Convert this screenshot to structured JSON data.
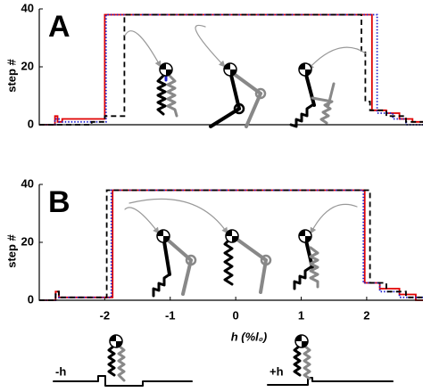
{
  "chart_data": [
    {
      "type": "line",
      "panel_label": "A",
      "ylabel": "step #",
      "xlim": [
        -3,
        2.86
      ],
      "ylim": [
        0,
        40
      ],
      "yticks": [
        0,
        20,
        40
      ],
      "series": [
        {
          "color": "#e00000",
          "dash": "solid",
          "x": [
            -3,
            -2.76,
            -2.76,
            -2.72,
            -2.72,
            -2.65,
            -2.65,
            -2.0,
            -2.0,
            2.08,
            2.08,
            2.3,
            2.3,
            2.5,
            2.5,
            2.7,
            2.7,
            2.86
          ],
          "values": [
            0,
            0,
            3,
            3,
            1,
            1,
            2,
            2,
            38,
            38,
            5,
            5,
            4,
            4,
            2,
            2,
            1,
            1
          ]
        },
        {
          "color": "#2020cc",
          "dash": "dotted",
          "x": [
            -3,
            -2.76,
            -2.76,
            -2.7,
            -2.7,
            -1.98,
            -1.98,
            2.16,
            2.16,
            2.4,
            2.4,
            2.6,
            2.6,
            2.86
          ],
          "values": [
            0,
            0,
            2,
            2,
            1,
            1,
            38,
            38,
            4,
            4,
            2,
            2,
            0,
            0
          ]
        },
        {
          "color": "#000000",
          "dash": "dashed",
          "x": [
            -3,
            -2.2,
            -2.2,
            -2.0,
            -2.0,
            -1.7,
            -1.7,
            1.92,
            1.92,
            1.98,
            1.98,
            2.05,
            2.05,
            2.3,
            2.3,
            2.6,
            2.6,
            2.86
          ],
          "values": [
            0,
            0,
            1,
            1,
            3,
            3,
            38,
            38,
            25,
            25,
            8,
            8,
            5,
            5,
            3,
            3,
            1,
            1
          ]
        }
      ]
    },
    {
      "type": "line",
      "panel_label": "B",
      "ylabel": "step #",
      "xlabel": "h (%l₀)",
      "xlim": [
        -3,
        2.86
      ],
      "ylim": [
        0,
        40
      ],
      "yticks": [
        0,
        20,
        40
      ],
      "xticks": [
        -2,
        -1,
        0,
        1,
        2
      ],
      "annotations": [
        "-h",
        "+h"
      ],
      "series": [
        {
          "color": "#e00000",
          "dash": "solid",
          "x": [
            -3,
            -2.75,
            -2.75,
            -2.7,
            -2.7,
            -1.88,
            -1.88,
            1.97,
            1.97,
            2.2,
            2.2,
            2.5,
            2.5,
            2.75,
            2.75,
            2.86
          ],
          "values": [
            0,
            0,
            3,
            3,
            1,
            1,
            38,
            38,
            6,
            6,
            4,
            4,
            2,
            2,
            0,
            0
          ]
        },
        {
          "color": "#2020cc",
          "dash": "dotted",
          "x": [
            -3,
            -2.75,
            -2.75,
            -2.7,
            -2.7,
            -1.9,
            -1.9,
            1.95,
            1.95,
            2.2,
            2.2,
            2.5,
            2.5,
            2.86
          ],
          "values": [
            0,
            0,
            2,
            2,
            1,
            1,
            38,
            38,
            6,
            6,
            3,
            3,
            1,
            1
          ]
        },
        {
          "color": "#000000",
          "dash": "dashed",
          "x": [
            -3,
            -2.75,
            -2.75,
            -2.7,
            -2.7,
            -1.97,
            -1.97,
            2.05,
            2.05,
            2.3,
            2.3,
            2.6,
            2.6,
            2.86
          ],
          "values": [
            0,
            0,
            3,
            3,
            1,
            1,
            38,
            38,
            6,
            6,
            3,
            3,
            1,
            1
          ]
        }
      ]
    }
  ]
}
